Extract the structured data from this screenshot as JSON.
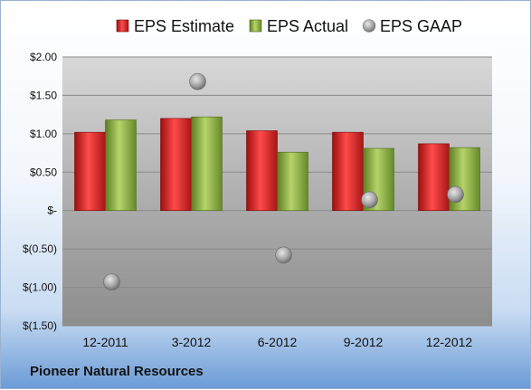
{
  "company": "Pioneer Natural Resources",
  "legend": [
    {
      "label": "EPS Estimate",
      "color": "#d42a2a"
    },
    {
      "label": "EPS Actual",
      "color": "#8db23e"
    },
    {
      "label": "EPS GAAP",
      "color": "#a0a0a0"
    }
  ],
  "chart_data": {
    "type": "bar",
    "categories": [
      "12-2011",
      "3-2012",
      "6-2012",
      "9-2012",
      "12-2012"
    ],
    "series": [
      {
        "name": "EPS Estimate",
        "type": "bar",
        "values": [
          1.02,
          1.2,
          1.04,
          1.02,
          0.87
        ]
      },
      {
        "name": "EPS Actual",
        "type": "bar",
        "values": [
          1.18,
          1.22,
          0.76,
          0.81,
          0.82
        ]
      },
      {
        "name": "EPS GAAP",
        "type": "scatter",
        "values": [
          -0.93,
          1.68,
          -0.58,
          0.14,
          0.21
        ]
      }
    ],
    "ylim": [
      -1.5,
      2.0
    ],
    "yticks": [
      {
        "value": 2.0,
        "label": "$2.00"
      },
      {
        "value": 1.5,
        "label": "$1.50"
      },
      {
        "value": 1.0,
        "label": "$1.00"
      },
      {
        "value": 0.5,
        "label": "$0.50"
      },
      {
        "value": 0.0,
        "label": "$-"
      },
      {
        "value": -0.5,
        "label": "$(0.50)"
      },
      {
        "value": -1.0,
        "label": "$(1.00)"
      },
      {
        "value": -1.5,
        "label": "$(1.50)"
      }
    ],
    "grid": true,
    "legend_position": "top"
  }
}
